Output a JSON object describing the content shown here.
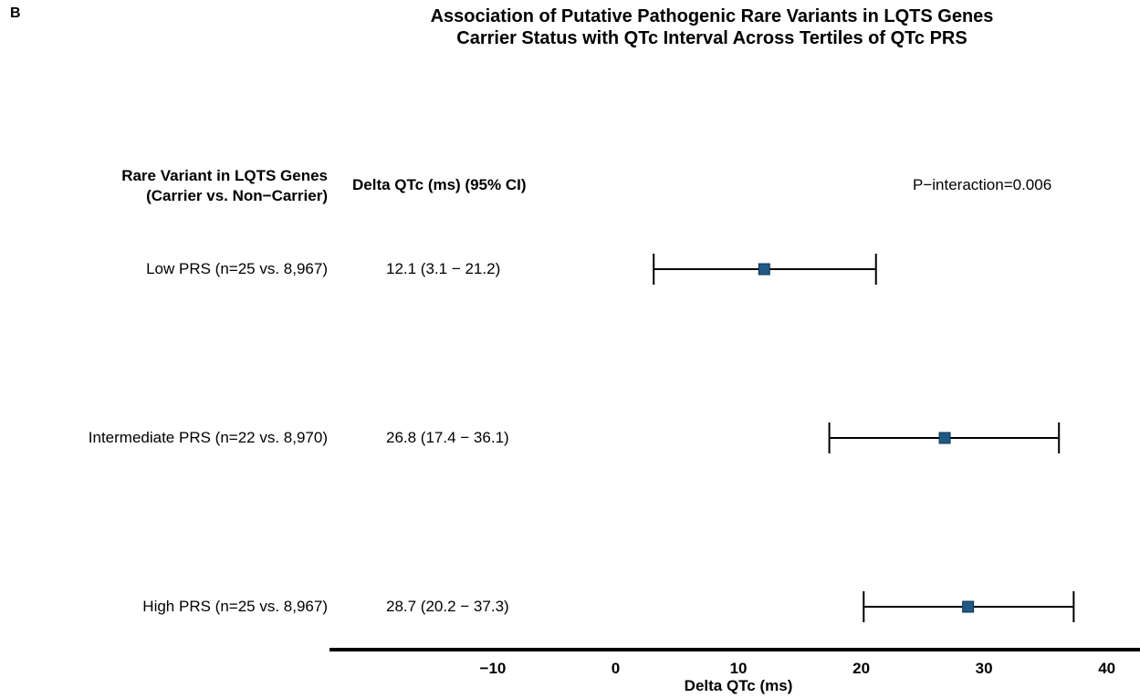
{
  "panel_letter": "B",
  "title_lines": [
    "Association of Putative Pathogenic Rare Variants in LQTS Genes",
    "Carrier Status with QTc Interval Across Tertiles of QTc PRS"
  ],
  "headers": {
    "variant_line1": "Rare Variant in LQTS Genes",
    "variant_line2": "(Carrier vs. Non−Carrier)",
    "delta": "Delta QTc (ms) (95% CI)",
    "p_interaction": "P−interaction=0.006"
  },
  "rows": [
    {
      "label": "Low PRS (n=25 vs. 8,967)",
      "ci_text": "12.1 (3.1 − 21.2)"
    },
    {
      "label": "Intermediate PRS (n=22 vs. 8,970)",
      "ci_text": "26.8 (17.4 − 36.1)"
    },
    {
      "label": "High PRS (n=25 vs. 8,967)",
      "ci_text": "28.7 (20.2 − 37.3)"
    }
  ],
  "chart_data": {
    "type": "forest",
    "title": "Association of Putative Pathogenic Rare Variants in LQTS Genes Carrier Status with QTc Interval Across Tertiles of QTc PRS",
    "xlabel": "Delta QTc (ms)",
    "categories": [
      "Low PRS (n=25 vs. 8,967)",
      "Intermediate PRS (n=22 vs. 8,970)",
      "High PRS (n=25 vs. 8,967)"
    ],
    "estimates": [
      12.1,
      26.8,
      28.7
    ],
    "ci_lower": [
      3.1,
      17.4,
      20.2
    ],
    "ci_upper": [
      21.2,
      36.1,
      37.3
    ],
    "x_ticks": [
      -10,
      0,
      10,
      20,
      30,
      40
    ],
    "x_tick_labels": [
      "−10",
      "0",
      "10",
      "20",
      "30",
      "40"
    ],
    "xlim": [
      -23.3,
      42.7
    ],
    "point_color": "#1f5a85",
    "grid": false
  }
}
